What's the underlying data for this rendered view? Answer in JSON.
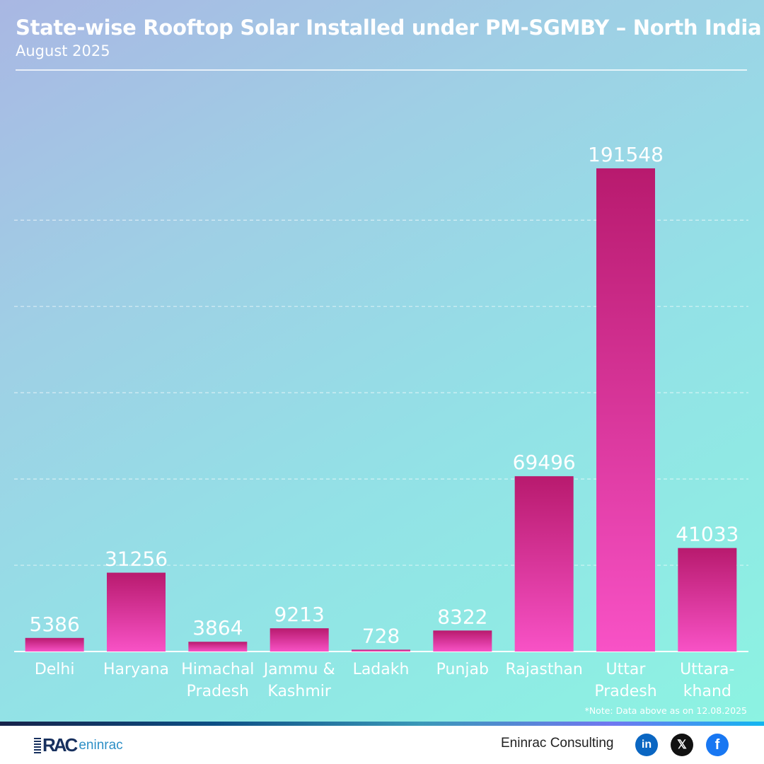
{
  "header": {
    "title": "State-wise Rooftop Solar Installed under PM-SGMBY – North India",
    "subtitle": "August 2025"
  },
  "chart_data": {
    "type": "bar",
    "title": "State-wise Rooftop Solar Installed under PM-SGMBY – North India",
    "subtitle": "August 2025",
    "xlabel": "",
    "ylabel": "",
    "categories": [
      [
        "Delhi"
      ],
      [
        "Haryana"
      ],
      [
        "Himachal",
        "Pradesh"
      ],
      [
        "Jammu &",
        "Kashmir"
      ],
      [
        "Ladakh"
      ],
      [
        "Punjab"
      ],
      [
        "Rajasthan"
      ],
      [
        "Uttar",
        "Pradesh"
      ],
      [
        "Uttara-",
        "khand"
      ]
    ],
    "values": [
      5386,
      31256,
      3864,
      9213,
      728,
      8322,
      69496,
      191548,
      41033
    ],
    "data_labels": [
      "5386",
      "31256",
      "3864",
      "9213",
      "728",
      "8322",
      "69496",
      "191548",
      "41033"
    ],
    "ylim": [
      0,
      205000
    ],
    "grid_step": 34200,
    "grid": true,
    "y_axis_visible": false,
    "legend": "none",
    "bar_color_top": "#b81a6e",
    "bar_color_bottom": "#f852c6"
  },
  "note": "*Note: Data above as on 12.08.2025",
  "footer": {
    "logo_mark": "RAC",
    "logo_text": "eninrac",
    "brand": "Eninrac Consulting",
    "social": [
      {
        "icon": "linkedin-icon",
        "glyph": "in"
      },
      {
        "icon": "x-icon",
        "glyph": "𝕏"
      },
      {
        "icon": "facebook-icon",
        "glyph": "f"
      }
    ]
  }
}
